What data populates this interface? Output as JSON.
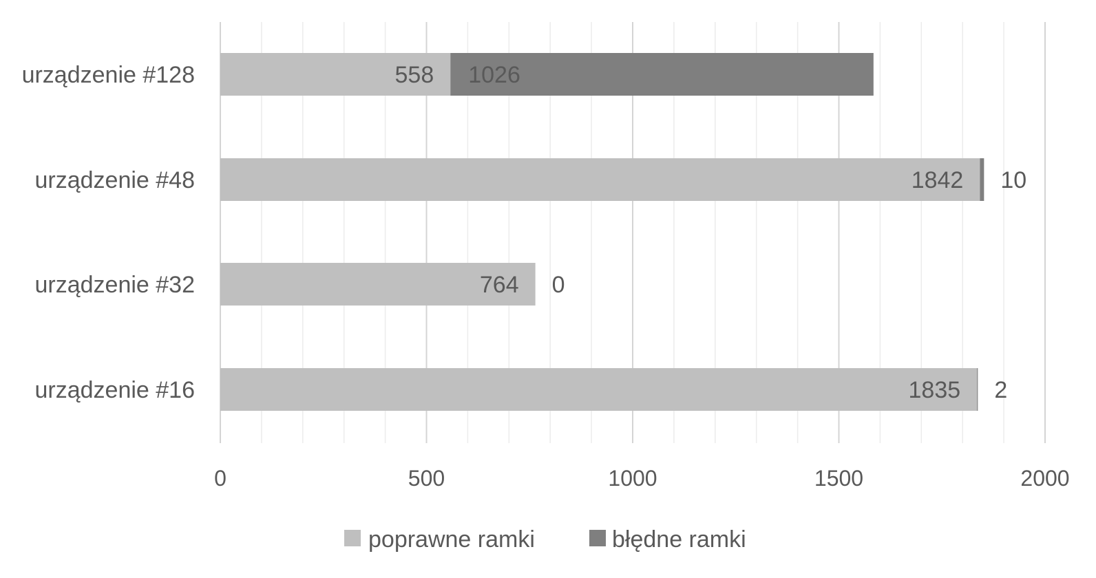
{
  "chart_data": {
    "type": "bar",
    "orientation": "horizontal",
    "stacked": true,
    "categories": [
      "urządzenie #128",
      "urządzenie #48",
      "urządzenie #32",
      "urządzenie #16"
    ],
    "series": [
      {
        "name": "poprawne ramki",
        "values": [
          558,
          1842,
          764,
          1835
        ],
        "color": "#bfbfbf"
      },
      {
        "name": "błędne ramki",
        "values": [
          1026,
          10,
          0,
          2
        ],
        "color": "#7f7f7f"
      }
    ],
    "xlim": [
      0,
      2000
    ],
    "x_major_ticks": [
      0,
      500,
      1000,
      1500,
      2000
    ],
    "x_minor_step": 100,
    "grid": true,
    "legend_position": "bottom",
    "data_labels": true,
    "title": "",
    "xlabel": "",
    "ylabel": ""
  }
}
